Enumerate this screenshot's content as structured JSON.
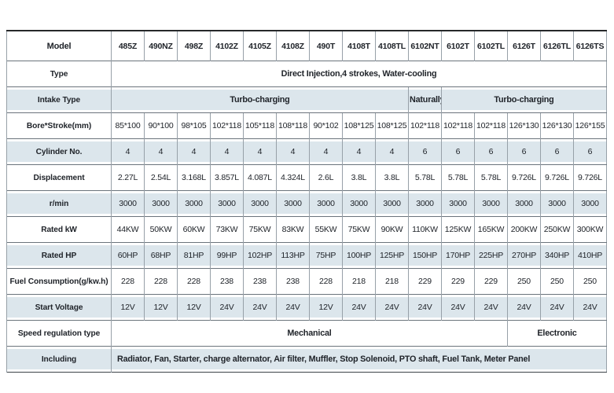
{
  "colors": {
    "shaded_row": "#dce6ec",
    "text": "#20242a",
    "border_horizontal": "#6b747c",
    "border_vertical": "#97a0a8",
    "border_top": "#26282a"
  },
  "table": {
    "corner_label": "Model",
    "columns": [
      "485Z",
      "490NZ",
      "498Z",
      "4102Z",
      "4105Z",
      "4108Z",
      "490T",
      "4108T",
      "4108TL",
      "6102NT",
      "6102T",
      "6102TL",
      "6126T",
      "6126TL",
      "6126TS"
    ],
    "rows": [
      {
        "label": "Type",
        "shaded": false,
        "cells": [
          {
            "text": "Direct Injection,4 strokes, Water-cooling",
            "span": 15
          }
        ]
      },
      {
        "label": "Intake Type",
        "shaded": true,
        "cells": [
          {
            "text": "Turbo-charging",
            "span": 9
          },
          {
            "text": "Naturally",
            "span": 1
          },
          {
            "text": "Turbo-charging",
            "span": 5
          }
        ]
      },
      {
        "label": "Bore*Stroke(mm)",
        "shaded": false,
        "cells": [
          {
            "text": "85*100"
          },
          {
            "text": "90*100"
          },
          {
            "text": "98*105"
          },
          {
            "text": "102*118"
          },
          {
            "text": "105*118"
          },
          {
            "text": "108*118"
          },
          {
            "text": "90*102"
          },
          {
            "text": "108*125"
          },
          {
            "text": "108*125"
          },
          {
            "text": "102*118"
          },
          {
            "text": "102*118"
          },
          {
            "text": "102*118"
          },
          {
            "text": "126*130"
          },
          {
            "text": "126*130"
          },
          {
            "text": "126*155"
          }
        ]
      },
      {
        "label": "Cylinder No.",
        "shaded": true,
        "cells": [
          {
            "text": "4"
          },
          {
            "text": "4"
          },
          {
            "text": "4"
          },
          {
            "text": "4"
          },
          {
            "text": "4"
          },
          {
            "text": "4"
          },
          {
            "text": "4"
          },
          {
            "text": "4"
          },
          {
            "text": "4"
          },
          {
            "text": "6"
          },
          {
            "text": "6"
          },
          {
            "text": "6"
          },
          {
            "text": "6"
          },
          {
            "text": "6"
          },
          {
            "text": "6"
          }
        ]
      },
      {
        "label": "Displacement",
        "shaded": false,
        "cells": [
          {
            "text": "2.27L"
          },
          {
            "text": "2.54L"
          },
          {
            "text": "3.168L"
          },
          {
            "text": "3.857L"
          },
          {
            "text": "4.087L"
          },
          {
            "text": "4.324L"
          },
          {
            "text": "2.6L"
          },
          {
            "text": "3.8L"
          },
          {
            "text": "3.8L"
          },
          {
            "text": "5.78L"
          },
          {
            "text": "5.78L"
          },
          {
            "text": "5.78L"
          },
          {
            "text": "9.726L"
          },
          {
            "text": "9.726L"
          },
          {
            "text": "9.726L"
          }
        ]
      },
      {
        "label": "r/min",
        "shaded": true,
        "cells": [
          {
            "text": "3000"
          },
          {
            "text": "3000"
          },
          {
            "text": "3000"
          },
          {
            "text": "3000"
          },
          {
            "text": "3000"
          },
          {
            "text": "3000"
          },
          {
            "text": "3000"
          },
          {
            "text": "3000"
          },
          {
            "text": "3000"
          },
          {
            "text": "3000"
          },
          {
            "text": "3000"
          },
          {
            "text": "3000"
          },
          {
            "text": "3000"
          },
          {
            "text": "3000"
          },
          {
            "text": "3000"
          }
        ]
      },
      {
        "label": "Rated kW",
        "shaded": false,
        "cells": [
          {
            "text": "44KW"
          },
          {
            "text": "50KW"
          },
          {
            "text": "60KW"
          },
          {
            "text": "73KW"
          },
          {
            "text": "75KW"
          },
          {
            "text": "83KW"
          },
          {
            "text": "55KW"
          },
          {
            "text": "75KW"
          },
          {
            "text": "90KW"
          },
          {
            "text": "110KW"
          },
          {
            "text": "125KW"
          },
          {
            "text": "165KW"
          },
          {
            "text": "200KW"
          },
          {
            "text": "250KW"
          },
          {
            "text": "300KW"
          }
        ]
      },
      {
        "label": "Rated HP",
        "shaded": true,
        "cells": [
          {
            "text": "60HP"
          },
          {
            "text": "68HP"
          },
          {
            "text": "81HP"
          },
          {
            "text": "99HP"
          },
          {
            "text": "102HP"
          },
          {
            "text": "113HP"
          },
          {
            "text": "75HP"
          },
          {
            "text": "100HP"
          },
          {
            "text": "125HP"
          },
          {
            "text": "150HP"
          },
          {
            "text": "170HP"
          },
          {
            "text": "225HP"
          },
          {
            "text": "270HP"
          },
          {
            "text": "340HP"
          },
          {
            "text": "410HP"
          }
        ]
      },
      {
        "label": "Fuel Consumption(g/kw.h)",
        "shaded": false,
        "cells": [
          {
            "text": "228"
          },
          {
            "text": "228"
          },
          {
            "text": "228"
          },
          {
            "text": "238"
          },
          {
            "text": "238"
          },
          {
            "text": "238"
          },
          {
            "text": "228"
          },
          {
            "text": "218"
          },
          {
            "text": "218"
          },
          {
            "text": "229"
          },
          {
            "text": "229"
          },
          {
            "text": "229"
          },
          {
            "text": "250"
          },
          {
            "text": "250"
          },
          {
            "text": "250"
          }
        ]
      },
      {
        "label": "Start Voltage",
        "shaded": true,
        "cells": [
          {
            "text": "12V"
          },
          {
            "text": "12V"
          },
          {
            "text": "12V"
          },
          {
            "text": "24V"
          },
          {
            "text": "24V"
          },
          {
            "text": "24V"
          },
          {
            "text": "12V"
          },
          {
            "text": "24V"
          },
          {
            "text": "24V"
          },
          {
            "text": "24V"
          },
          {
            "text": "24V"
          },
          {
            "text": "24V"
          },
          {
            "text": "24V"
          },
          {
            "text": "24V"
          },
          {
            "text": "24V"
          }
        ]
      },
      {
        "label": "Speed regulation type",
        "shaded": false,
        "cells": [
          {
            "text": "Mechanical",
            "span": 12
          },
          {
            "text": "Electronic",
            "span": 3
          }
        ]
      },
      {
        "label": "Including",
        "shaded": true,
        "cells": [
          {
            "text": "Radiator, Fan, Starter, charge alternator, Air filter, Muffler, Stop Solenoid, PTO shaft, Fuel Tank, Meter Panel",
            "span": 15,
            "align": "left"
          }
        ]
      }
    ]
  }
}
